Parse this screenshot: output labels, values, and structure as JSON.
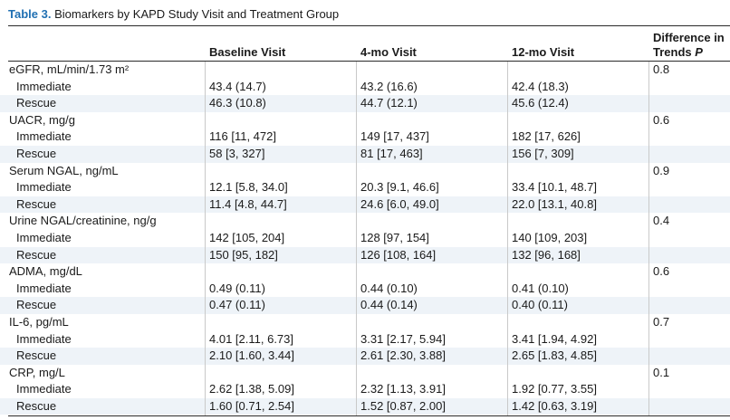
{
  "caption": {
    "label": "Table 3.",
    "title": "Biomarkers by KAPD Study Visit and Treatment Group"
  },
  "header": {
    "baseline": "Baseline Visit",
    "four_mo": "4-mo Visit",
    "twelve_mo": "12-mo Visit",
    "trend_line1": "Difference in",
    "trend_line2_prefix": "Trends ",
    "trend_line2_p": "P"
  },
  "rows": [
    {
      "type": "cat",
      "label": "eGFR, mL/min/1.73 m²",
      "p": "0.8"
    },
    {
      "type": "sub",
      "label": "Immediate",
      "baseline": "43.4 (14.7)",
      "four_mo": "43.2 (16.6)",
      "twelve_mo": "42.4 (18.3)"
    },
    {
      "type": "sub",
      "label": "Rescue",
      "baseline": "46.3 (10.8)",
      "four_mo": "44.7 (12.1)",
      "twelve_mo": "45.6 (12.4)"
    },
    {
      "type": "cat",
      "label": "UACR, mg/g",
      "p": "0.6"
    },
    {
      "type": "sub",
      "label": "Immediate",
      "baseline": "116 [11, 472]",
      "four_mo": "149 [17, 437]",
      "twelve_mo": "182 [17, 626]"
    },
    {
      "type": "sub",
      "label": "Rescue",
      "baseline": "58 [3, 327]",
      "four_mo": "81 [17, 463]",
      "twelve_mo": "156 [7, 309]"
    },
    {
      "type": "cat",
      "label": "Serum NGAL, ng/mL",
      "p": "0.9"
    },
    {
      "type": "sub",
      "label": "Immediate",
      "baseline": "12.1 [5.8, 34.0]",
      "four_mo": "20.3 [9.1, 46.6]",
      "twelve_mo": "33.4 [10.1, 48.7]"
    },
    {
      "type": "sub",
      "label": "Rescue",
      "baseline": "11.4 [4.8, 44.7]",
      "four_mo": "24.6 [6.0, 49.0]",
      "twelve_mo": "22.0 [13.1, 40.8]"
    },
    {
      "type": "cat",
      "label": "Urine NGAL/creatinine, ng/g",
      "p": "0.4"
    },
    {
      "type": "sub",
      "label": "Immediate",
      "baseline": "142 [105, 204]",
      "four_mo": "128 [97, 154]",
      "twelve_mo": "140 [109, 203]"
    },
    {
      "type": "sub",
      "label": "Rescue",
      "baseline": "150 [95, 182]",
      "four_mo": "126 [108, 164]",
      "twelve_mo": "132 [96, 168]"
    },
    {
      "type": "cat",
      "label": "ADMA, mg/dL",
      "p": "0.6"
    },
    {
      "type": "sub",
      "label": "Immediate",
      "baseline": "0.49 (0.11)",
      "four_mo": "0.44 (0.10)",
      "twelve_mo": "0.41 (0.10)"
    },
    {
      "type": "sub",
      "label": "Rescue",
      "baseline": "0.47 (0.11)",
      "four_mo": "0.44 (0.14)",
      "twelve_mo": "0.40 (0.11)"
    },
    {
      "type": "cat",
      "label": "IL-6, pg/mL",
      "p": "0.7"
    },
    {
      "type": "sub",
      "label": "Immediate",
      "baseline": "4.01 [2.11, 6.73]",
      "four_mo": "3.31 [2.17, 5.94]",
      "twelve_mo": "3.41 [1.94, 4.92]"
    },
    {
      "type": "sub",
      "label": "Rescue",
      "baseline": "2.10 [1.60, 3.44]",
      "four_mo": "2.61 [2.30, 3.88]",
      "twelve_mo": "2.65 [1.83, 4.85]"
    },
    {
      "type": "cat",
      "label": "CRP, mg/L",
      "p": "0.1"
    },
    {
      "type": "sub",
      "label": "Immediate",
      "baseline": "2.62 [1.38, 5.09]",
      "four_mo": "2.32 [1.13, 3.91]",
      "twelve_mo": "1.92 [0.77, 3.55]"
    },
    {
      "type": "sub",
      "label": "Rescue",
      "baseline": "1.60 [0.71, 2.54]",
      "four_mo": "1.52 [0.87, 2.00]",
      "twelve_mo": "1.42 [0.63, 3.19]"
    }
  ],
  "colors": {
    "caption_label": "#1f6fb2",
    "row_shade": "#eef3f8",
    "rule": "#2a2a2a"
  }
}
